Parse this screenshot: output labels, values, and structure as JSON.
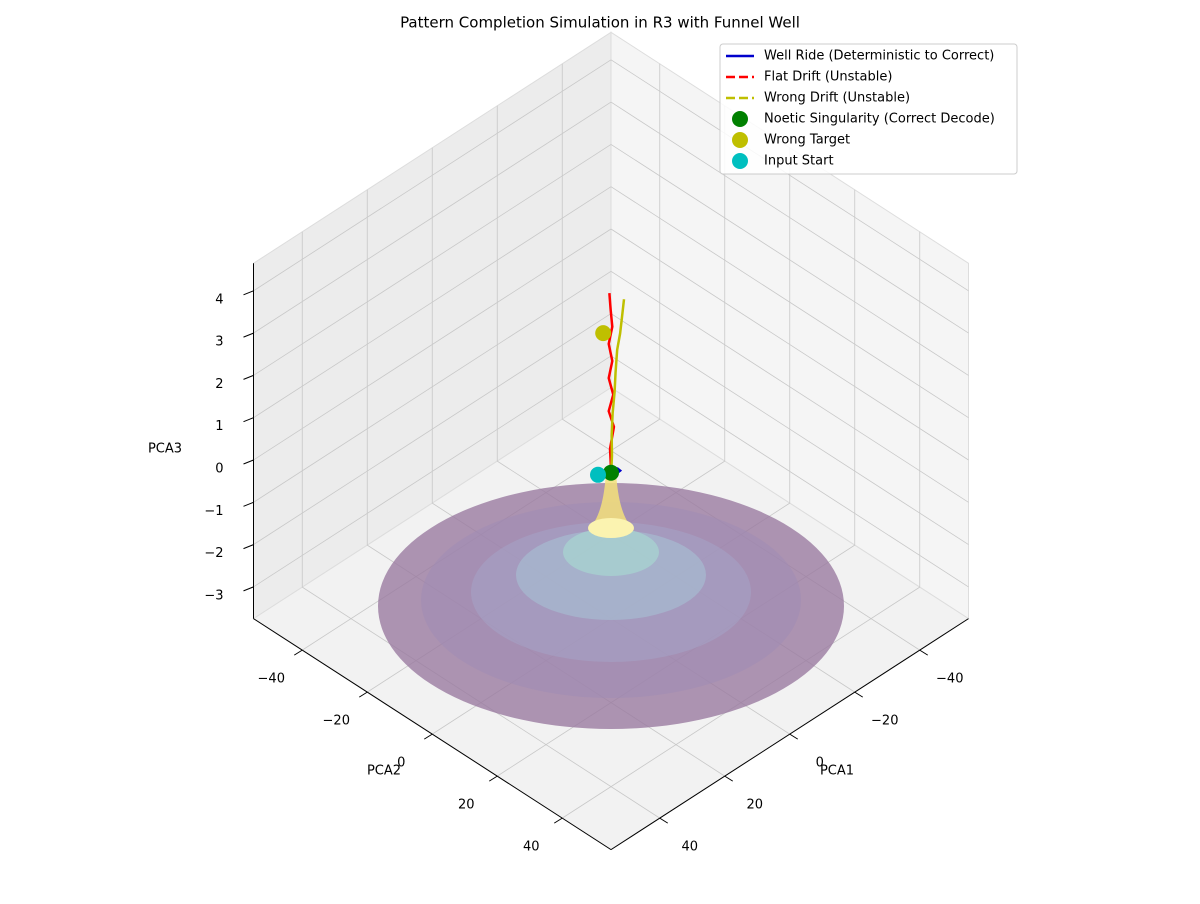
{
  "chart_data": {
    "type": "line3d",
    "title": "Pattern Completion Simulation in R3 with Funnel Well",
    "xlabel": "PCA1",
    "ylabel": "PCA2",
    "zlabel": "PCA3",
    "xlim": [
      -55,
      55
    ],
    "ylim": [
      -55,
      55
    ],
    "zlim": [
      -3.75,
      4.65
    ],
    "xticks": [
      {
        "value": -40,
        "label": "−40"
      },
      {
        "value": -20,
        "label": "−20"
      },
      0,
      20,
      40
    ],
    "yticks": [
      {
        "value": -40,
        "label": "−40"
      },
      {
        "value": -20,
        "label": "−20"
      },
      0,
      20,
      40
    ],
    "zticks": [
      {
        "value": -3,
        "label": "−3"
      },
      {
        "value": -2,
        "label": "−2"
      },
      {
        "value": -1,
        "label": "−1"
      },
      0,
      1,
      2,
      3,
      4
    ],
    "grid": true,
    "legend": "upper right",
    "series": [
      {
        "name": "Well Ride (Deterministic to Correct)",
        "color": "#0000cc",
        "style": "solid",
        "x": [
          2,
          1.4,
          0,
          -1.4,
          -2,
          -1.4,
          0,
          1.4,
          2
        ],
        "y": [
          0,
          1.4,
          2,
          1.4,
          0,
          -1.4,
          -2,
          -1.4,
          0
        ],
        "z": [
          -0.3,
          -0.25,
          -0.2,
          -0.25,
          -0.3,
          -0.35,
          -0.4,
          -0.35,
          -0.3
        ]
      },
      {
        "name": "Flat Drift (Unstable)",
        "color": "#ff0000",
        "style": "dashed",
        "x": [
          0,
          0.5,
          -0.3,
          0.8,
          0.2,
          1.0,
          0.4,
          0.9,
          0.3,
          0.6,
          0.8
        ],
        "y": [
          0,
          0.2,
          0.6,
          0.1,
          0.9,
          0.3,
          0.8,
          0.2,
          0.7,
          0.5,
          0.3
        ],
        "z": [
          -0.2,
          0.3,
          0.8,
          1.2,
          1.6,
          2.0,
          2.4,
          2.8,
          3.2,
          3.6,
          4.0
        ]
      },
      {
        "name": "Wrong Drift (Unstable)",
        "color": "#bfbf00",
        "style": "dashed",
        "x": [
          0,
          -0.2,
          0.1,
          -0.3,
          -0.6,
          -0.4,
          -1.0,
          -1.3,
          -1.6,
          -2.0
        ],
        "y": [
          0,
          0.1,
          0.3,
          0.2,
          0.5,
          1.0,
          0.9,
          1.5,
          1.8,
          2.0
        ],
        "z": [
          -0.4,
          0.1,
          0.6,
          1.1,
          1.6,
          2.1,
          2.6,
          3.0,
          3.4,
          3.8
        ]
      }
    ],
    "points": [
      {
        "name": "Noetic Singularity (Correct Decode)",
        "color": "#008000",
        "x": 0,
        "y": 0,
        "z": -0.3
      },
      {
        "name": "Wrong Target",
        "color": "#bfbf00",
        "x": 1.2,
        "y": -1.2,
        "z": 3.0
      },
      {
        "name": "Input Start",
        "color": "#00bfbf",
        "x": 2,
        "y": -2,
        "z": -0.35
      }
    ]
  }
}
